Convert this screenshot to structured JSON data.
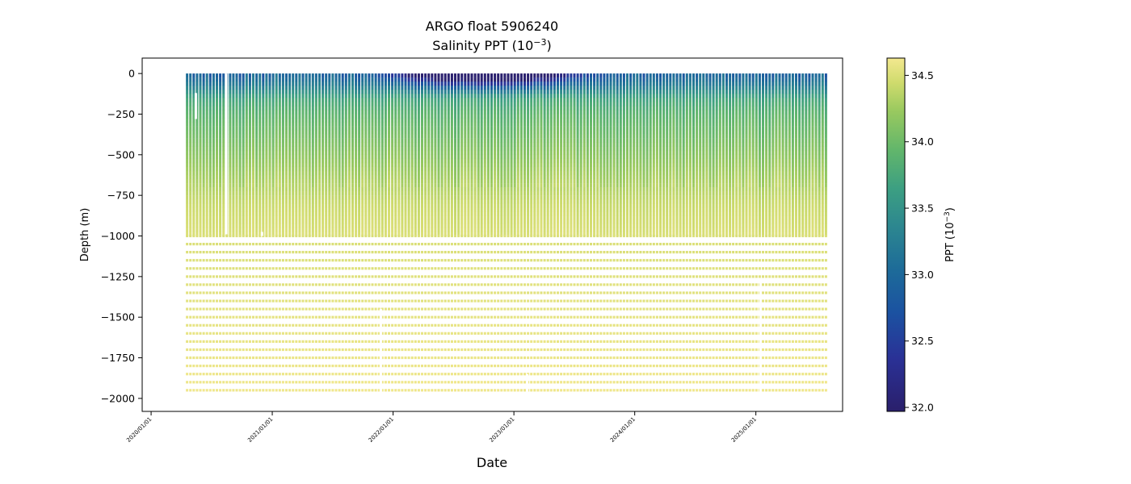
{
  "chart_data": {
    "type": "heatmap",
    "title": "ARGO float 5906240",
    "subtitle_prefix": "Salinity PPT (10",
    "subtitle_exp": "−3",
    "subtitle_suffix": ")",
    "xlabel": "Date",
    "ylabel": "Depth (m)",
    "xlim": [
      "2019-12-05",
      "2025-09-20"
    ],
    "ylim": [
      -2080,
      95
    ],
    "x_ticks": [
      "2020/01/01",
      "2021/01/01",
      "2022/01/01",
      "2023/01/01",
      "2024/01/01",
      "2025/01/01"
    ],
    "y_ticks": [
      0,
      -250,
      -500,
      -750,
      -1000,
      -1250,
      -1500,
      -1750,
      -2000
    ],
    "y_tick_labels": [
      "0",
      "−250",
      "−500",
      "−750",
      "−1000",
      "−1250",
      "−1500",
      "−1750",
      "−2000"
    ],
    "time_range": [
      "2020-04-15",
      "2025-07-28"
    ],
    "profile_depth_range": [
      0,
      -2000
    ],
    "colormap": "haline",
    "colorbar": {
      "label_prefix": "PPT (10",
      "label_exp": "−3",
      "label_suffix": ")",
      "range": [
        31.97,
        34.63
      ],
      "ticks": [
        32.0,
        32.5,
        33.0,
        33.5,
        34.0,
        34.5
      ],
      "tick_labels": [
        "32.0",
        "32.5",
        "33.0",
        "33.5",
        "34.0",
        "34.5"
      ]
    },
    "salinity_profile": {
      "depths": [
        0,
        -50,
        -100,
        -150,
        -250,
        -400,
        -600,
        -800,
        -1000,
        -2000
      ],
      "values": [
        32.9,
        33.1,
        33.4,
        33.7,
        33.9,
        34.05,
        34.25,
        34.42,
        34.5,
        34.62
      ]
    },
    "surface_fresh_period": [
      "2021-10-01",
      "2023-09-30"
    ],
    "surface_min_salinity": 32.0,
    "gaps": [
      {
        "date": "2020-05-15",
        "depth": [
          -120,
          -280
        ]
      },
      {
        "date": "2020-08-15",
        "depth": [
          0,
          -990
        ]
      },
      {
        "date": "2020-12-01",
        "depth": [
          -975,
          -1000
        ]
      },
      {
        "date": "2021-11-25",
        "depth": [
          -1450,
          -1980
        ]
      },
      {
        "date": "2023-02-10",
        "depth": [
          -1850,
          -1980
        ]
      },
      {
        "date": "2025-01-15",
        "depth": [
          -1260,
          -1980
        ]
      }
    ],
    "grid": false,
    "legend": "none"
  }
}
